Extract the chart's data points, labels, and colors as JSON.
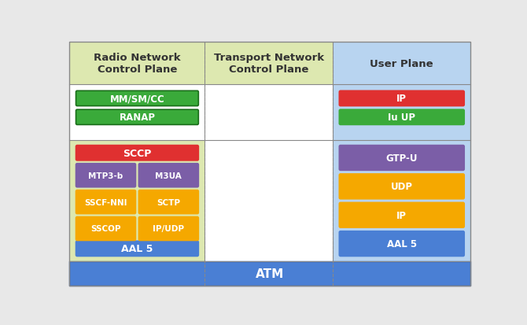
{
  "columns": [
    "Radio Network\nControl Plane",
    "Transport Network\nControl Plane",
    "User Plane"
  ],
  "col_bg_left": "#dde8b0",
  "col_bg_right": "#b8d4f0",
  "col_bg_white": "#ffffff",
  "atm_color": "#4a7fd4",
  "atm_label": "ATM",
  "row1_left_blocks": [
    {
      "label": "MM/SM/CC",
      "color": "#3aaa3a",
      "border": "#1a6e1a"
    },
    {
      "label": "RANAP",
      "color": "#3aaa3a",
      "border": "#1a6e1a"
    }
  ],
  "row1_right_blocks": [
    {
      "label": "IP",
      "color": "#e03030"
    },
    {
      "label": "Iu UP",
      "color": "#3aaa3a"
    }
  ],
  "row2_left_sccp": {
    "label": "SCCP",
    "color": "#e03030"
  },
  "row2_left_aal5": {
    "label": "AAL 5",
    "color": "#4a7fd4"
  },
  "row2_left_pairs": [
    [
      {
        "label": "MTP3-b",
        "color": "#7b5ea7"
      },
      {
        "label": "M3UA",
        "color": "#7b5ea7"
      }
    ],
    [
      {
        "label": "SSCF-NNI",
        "color": "#f5a800"
      },
      {
        "label": "SCTP",
        "color": "#f5a800"
      }
    ],
    [
      {
        "label": "SSCOP",
        "color": "#f5a800"
      },
      {
        "label": "IP/UDP",
        "color": "#f5a800"
      }
    ]
  ],
  "row2_right_blocks": [
    {
      "label": "GTP-U",
      "color": "#7b5ea7"
    },
    {
      "label": "UDP",
      "color": "#f5a800"
    },
    {
      "label": "IP",
      "color": "#f5a800"
    },
    {
      "label": "AAL 5",
      "color": "#4a7fd4"
    }
  ]
}
